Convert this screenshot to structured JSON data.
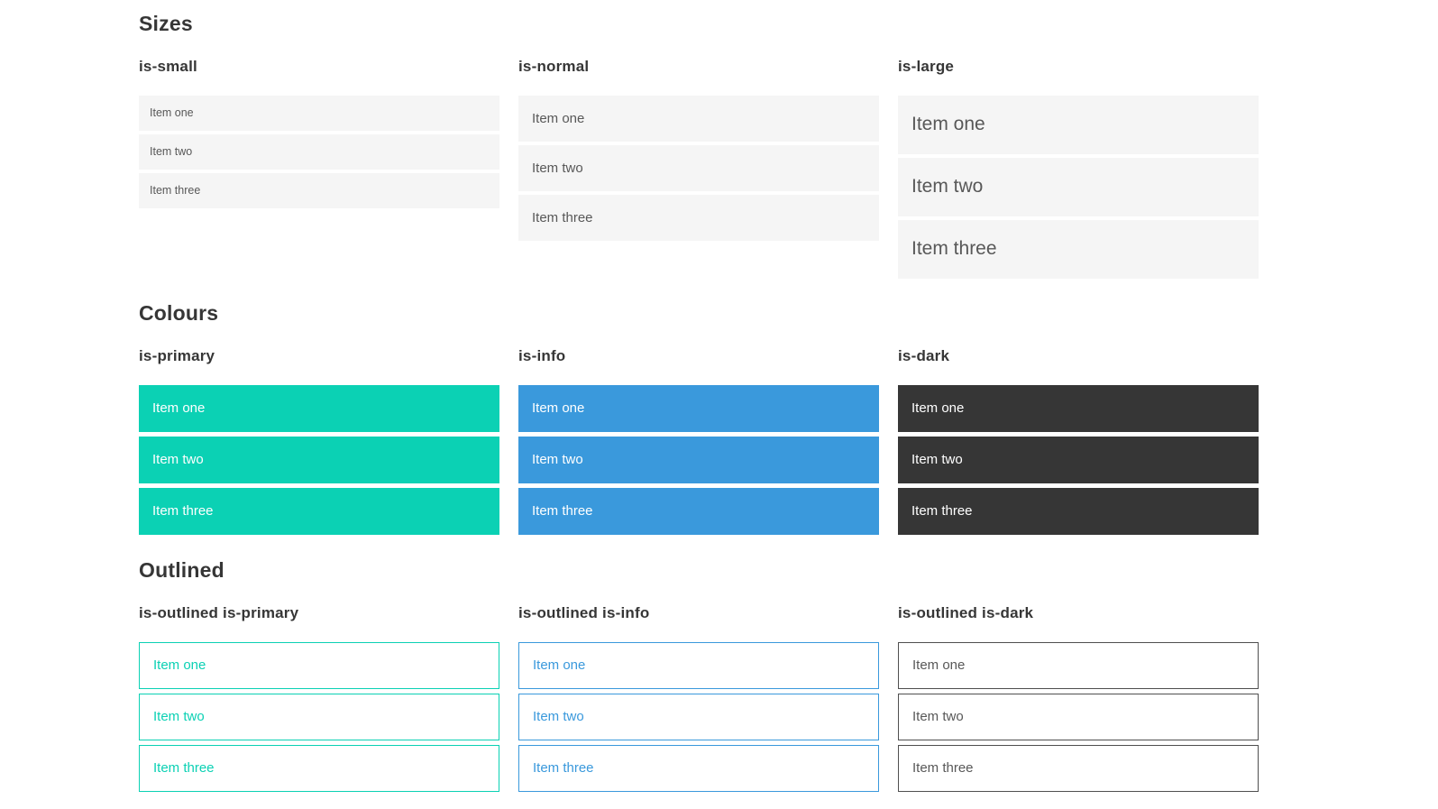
{
  "colors": {
    "primary": "#0bd1b4",
    "info": "#3a99dc",
    "dark": "#363636",
    "dark_outline": "#4f4f4f",
    "item_bg": "#f5f5f5",
    "item_text": "#585858"
  },
  "sections": [
    {
      "title": "Sizes",
      "groups": [
        {
          "label": "is-small",
          "items": [
            "Item one",
            "Item two",
            "Item three"
          ]
        },
        {
          "label": "is-normal",
          "items": [
            "Item one",
            "Item two",
            "Item three"
          ]
        },
        {
          "label": "is-large",
          "items": [
            "Item one",
            "Item two",
            "Item three"
          ]
        }
      ]
    },
    {
      "title": "Colours",
      "groups": [
        {
          "label": "is-primary",
          "items": [
            "Item one",
            "Item two",
            "Item three"
          ]
        },
        {
          "label": "is-info",
          "items": [
            "Item one",
            "Item two",
            "Item three"
          ]
        },
        {
          "label": "is-dark",
          "items": [
            "Item one",
            "Item two",
            "Item three"
          ]
        }
      ]
    },
    {
      "title": "Outlined",
      "groups": [
        {
          "label": "is-outlined is-primary",
          "items": [
            "Item one",
            "Item two",
            "Item three"
          ]
        },
        {
          "label": "is-outlined is-info",
          "items": [
            "Item one",
            "Item two",
            "Item three"
          ]
        },
        {
          "label": "is-outlined is-dark",
          "items": [
            "Item one",
            "Item two",
            "Item three"
          ]
        }
      ]
    }
  ]
}
